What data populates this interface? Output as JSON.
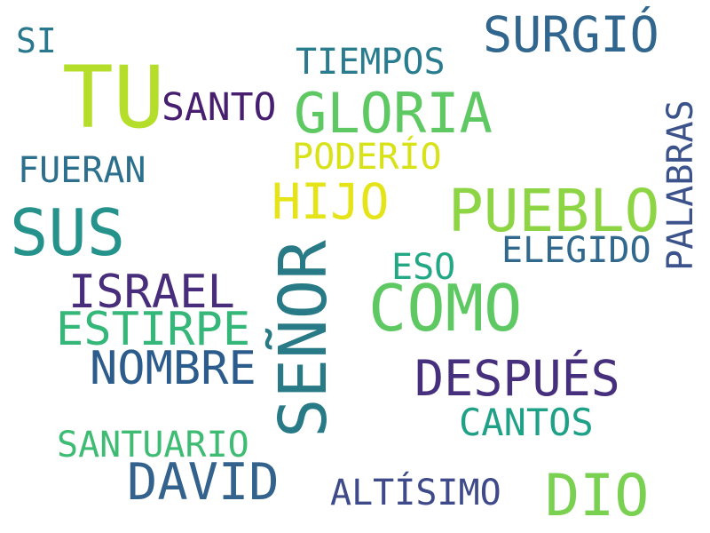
{
  "words": {
    "senor": {
      "text": "SEÑOR",
      "color": "#287a86"
    },
    "tu": {
      "text": "TU",
      "color": "#b5de2b"
    },
    "sus": {
      "text": "SUS",
      "color": "#25938b"
    },
    "como": {
      "text": "COMO",
      "color": "#5ec962"
    },
    "pueblo": {
      "text": "PUEBLO",
      "color": "#8dd544"
    },
    "dio": {
      "text": "DIO",
      "color": "#7ad151"
    },
    "david": {
      "text": "DAVID",
      "color": "#33638d"
    },
    "gloria": {
      "text": "GLORIA",
      "color": "#5ec962"
    },
    "surgio": {
      "text": "SURGIÓ",
      "color": "#31668e"
    },
    "despues": {
      "text": "DESPUÉS",
      "color": "#46307e"
    },
    "israel": {
      "text": "ISRAEL",
      "color": "#472d7b"
    },
    "estirpe": {
      "text": "ESTIRPE",
      "color": "#35b779"
    },
    "nombre": {
      "text": "NOMBRE",
      "color": "#2c5c8c"
    },
    "hijo": {
      "text": "HIJO",
      "color": "#e5e419"
    },
    "palabras": {
      "text": "PALABRAS",
      "color": "#3b528b"
    },
    "elegido": {
      "text": "ELEGIDO",
      "color": "#31688e"
    },
    "santuario": {
      "text": "SANTUARIO",
      "color": "#3fbc73"
    },
    "tiempos": {
      "text": "TIEMPOS",
      "color": "#287c8e"
    },
    "santo": {
      "text": "SANTO",
      "color": "#481f70"
    },
    "poderio": {
      "text": "PODERÍO",
      "color": "#d8e219"
    },
    "fueran": {
      "text": "FUERAN",
      "color": "#2d708e"
    },
    "cantos": {
      "text": "CANTOS",
      "color": "#1fa187"
    },
    "altisimo": {
      "text": "ALTÍSIMO",
      "color": "#3e4a89"
    },
    "eso": {
      "text": "ESO",
      "color": "#22a884"
    },
    "si": {
      "text": "SI",
      "color": "#2a788e"
    }
  }
}
